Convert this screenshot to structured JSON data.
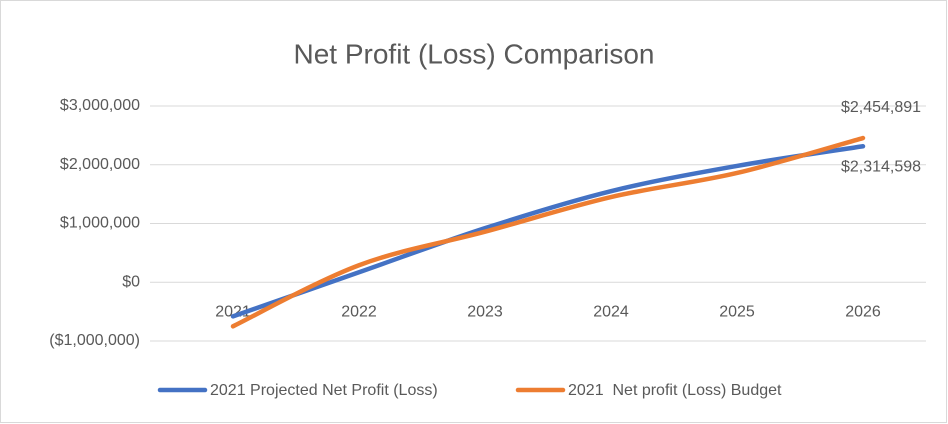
{
  "chart_data": {
    "type": "line",
    "title": "Net Profit (Loss) Comparison",
    "categories": [
      "2021",
      "2022",
      "2023",
      "2024",
      "2025",
      "2026"
    ],
    "series": [
      {
        "name": "2021 Projected Net Profit (Loss)",
        "color": "#4472c4",
        "values": [
          -580000,
          170000,
          920000,
          1550000,
          1980000,
          2314598
        ],
        "value_labels": [
          null,
          null,
          null,
          null,
          null,
          "$2,314,598"
        ]
      },
      {
        "name": "2021  Net profit (Loss) Budget",
        "color": "#ed7d31",
        "values": [
          -750000,
          290000,
          860000,
          1450000,
          1860000,
          2454891
        ],
        "value_labels": [
          null,
          null,
          null,
          null,
          null,
          "$2,454,891"
        ]
      }
    ],
    "ylim": [
      -1000000,
      3000000
    ],
    "yticks": [
      {
        "value": -1000000,
        "label": "($1,000,000)"
      },
      {
        "value": 0,
        "label": "$0"
      },
      {
        "value": 1000000,
        "label": "$1,000,000"
      },
      {
        "value": 2000000,
        "label": "$2,000,000"
      },
      {
        "value": 3000000,
        "label": "$3,000,000"
      }
    ],
    "grid": true,
    "legend": "bottom"
  }
}
